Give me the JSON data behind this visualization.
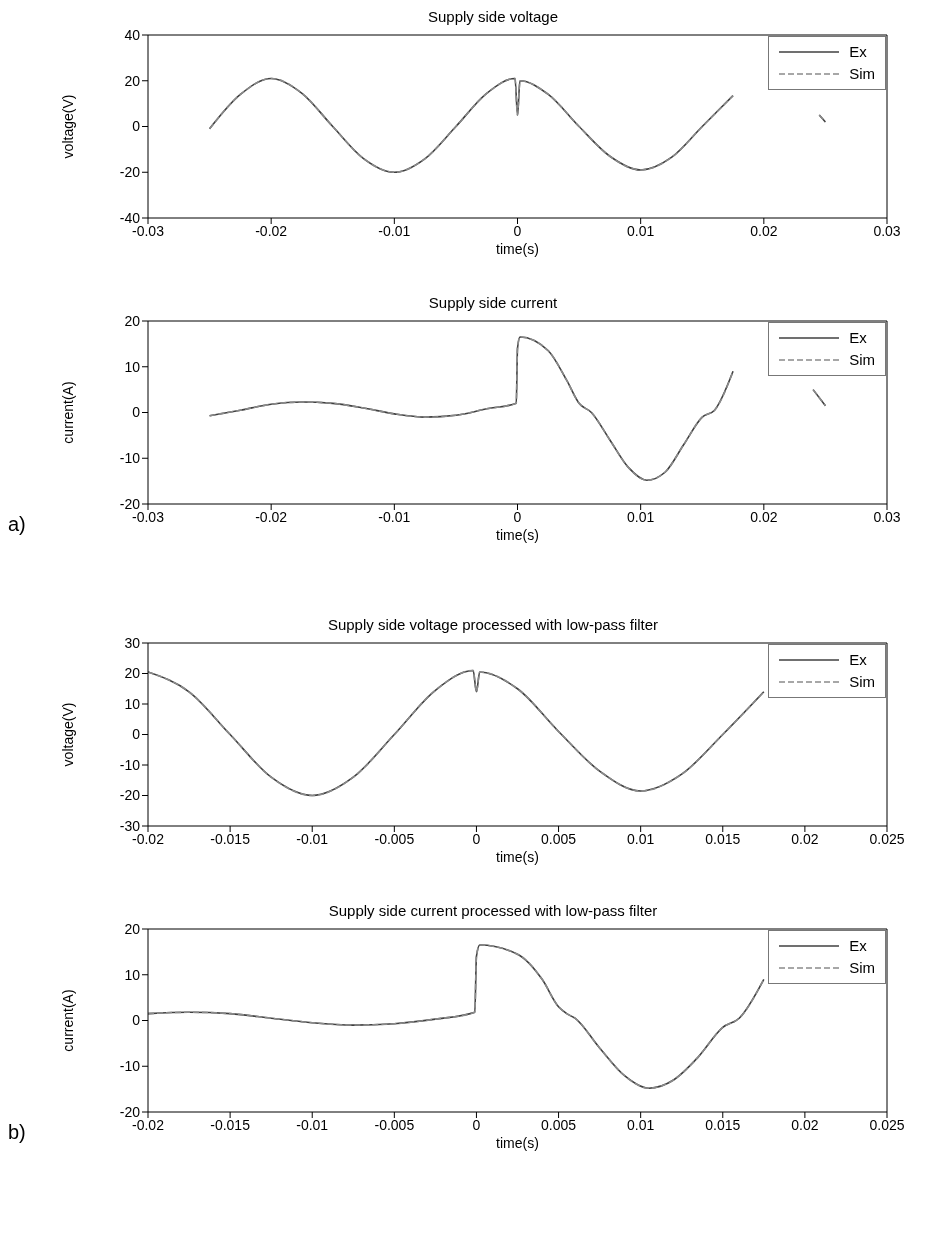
{
  "chart_data": [
    {
      "type": "line",
      "title": "Supply side voltage",
      "xlabel": "time(s)",
      "ylabel": "voltage(V)",
      "xlim": [
        -0.03,
        0.03
      ],
      "xticks": [
        -0.03,
        -0.02,
        -0.01,
        0,
        0.01,
        0.02,
        0.03
      ],
      "ylim": [
        -40,
        40
      ],
      "yticks": [
        -40,
        -20,
        0,
        20,
        40
      ],
      "legend": "top right",
      "grid": false,
      "x": [
        -0.025,
        -0.0225,
        -0.02,
        -0.0175,
        -0.015,
        -0.0125,
        -0.01,
        -0.0075,
        -0.005,
        -0.0025,
        -0.0002,
        0,
        0.0002,
        0.0025,
        0.005,
        0.0075,
        0.01,
        0.0125,
        0.015,
        0.0175,
        0.02,
        0.0225,
        0.0245,
        0.025
      ],
      "series": [
        {
          "name": "Ex",
          "color": "#404040",
          "line_style": "solid",
          "values": [
            -1,
            14,
            21,
            14.5,
            0,
            -14,
            -20,
            -14,
            0,
            14.5,
            21,
            5,
            20,
            14,
            0,
            -13,
            -19,
            -13.5,
            0,
            13.5,
            null,
            null,
            5,
            2
          ]
        },
        {
          "name": "Sim",
          "color": "#8a8a8a",
          "line_style": "dashed",
          "values": [
            -1,
            14,
            21,
            14.5,
            0,
            -14,
            -20,
            -14,
            0,
            14.5,
            21,
            5,
            20,
            14,
            0,
            -13,
            -19,
            -13.5,
            0,
            13.5,
            null,
            null,
            5,
            2
          ]
        }
      ]
    },
    {
      "type": "line",
      "title": "Supply side current",
      "xlabel": "time(s)",
      "ylabel": "current(A)",
      "annotations": [
        "a)"
      ],
      "xlim": [
        -0.03,
        0.03
      ],
      "xticks": [
        -0.03,
        -0.02,
        -0.01,
        0,
        0.01,
        0.02,
        0.03
      ],
      "ylim": [
        -20,
        20
      ],
      "yticks": [
        -20,
        -10,
        0,
        10,
        20
      ],
      "legend": "top right",
      "grid": false,
      "x": [
        -0.025,
        -0.0225,
        -0.02,
        -0.0175,
        -0.015,
        -0.0125,
        -0.01,
        -0.0075,
        -0.005,
        -0.0025,
        -0.0001,
        0,
        0.0002,
        0.0025,
        0.004,
        0.005,
        0.006,
        0.0075,
        0.009,
        0.0105,
        0.012,
        0.0135,
        0.015,
        0.016,
        0.0175,
        0.02,
        0.0225,
        0.024,
        0.025
      ],
      "series": [
        {
          "name": "Ex",
          "color": "#404040",
          "line_style": "solid",
          "values": [
            -0.7,
            0.5,
            1.8,
            2.3,
            2,
            1,
            -0.3,
            -1,
            -0.6,
            0.8,
            2,
            14,
            16.5,
            13.5,
            7,
            2,
            0,
            -6,
            -12,
            -14.8,
            -13,
            -7,
            -1,
            0.5,
            9,
            null,
            null,
            5,
            1.5
          ]
        },
        {
          "name": "Sim",
          "color": "#8a8a8a",
          "line_style": "dashed",
          "values": [
            -0.7,
            0.5,
            1.8,
            2.3,
            2,
            1,
            -0.3,
            -1,
            -0.6,
            0.8,
            2,
            14,
            16.5,
            13.5,
            7,
            2,
            0,
            -6,
            -12,
            -14.8,
            -13,
            -7,
            -1,
            0.5,
            9,
            null,
            null,
            5,
            1.5
          ]
        }
      ]
    },
    {
      "type": "line",
      "title": "Supply side voltage processed with low-pass filter",
      "xlabel": "time(s)",
      "ylabel": "voltage(V)",
      "xlim": [
        -0.02,
        0.025
      ],
      "xticks": [
        -0.02,
        -0.015,
        -0.01,
        -0.005,
        0,
        0.005,
        0.01,
        0.015,
        0.02,
        0.025
      ],
      "ylim": [
        -30,
        30
      ],
      "yticks": [
        -30,
        -20,
        -10,
        0,
        10,
        20,
        30
      ],
      "legend": "top right",
      "grid": false,
      "x": [
        -0.02,
        -0.0175,
        -0.015,
        -0.0125,
        -0.01,
        -0.0075,
        -0.005,
        -0.0025,
        -0.0002,
        0,
        0.0002,
        0.0025,
        0.005,
        0.0075,
        0.01,
        0.0125,
        0.015,
        0.0175
      ],
      "series": [
        {
          "name": "Ex",
          "color": "#404040",
          "line_style": "solid",
          "values": [
            20.5,
            14,
            0,
            -14,
            -20,
            -14,
            0,
            14.5,
            21,
            14,
            20.5,
            15,
            1,
            -12,
            -18.5,
            -13,
            0,
            14
          ]
        },
        {
          "name": "Sim",
          "color": "#8a8a8a",
          "line_style": "dashed",
          "values": [
            20.5,
            14,
            0,
            -14,
            -20,
            -14,
            0,
            14.5,
            21,
            14,
            20.5,
            15,
            1,
            -12,
            -18.5,
            -13,
            0,
            14
          ]
        }
      ]
    },
    {
      "type": "line",
      "title": "Supply side current processed with low-pass filter",
      "xlabel": "time(s)",
      "ylabel": "current(A)",
      "annotations": [
        "b)"
      ],
      "xlim": [
        -0.02,
        0.025
      ],
      "xticks": [
        -0.02,
        -0.015,
        -0.01,
        -0.005,
        0,
        0.005,
        0.01,
        0.015,
        0.02,
        0.025
      ],
      "ylim": [
        -20,
        20
      ],
      "yticks": [
        -20,
        -10,
        0,
        10,
        20
      ],
      "legend": "top right",
      "grid": false,
      "x": [
        -0.02,
        -0.0175,
        -0.015,
        -0.0125,
        -0.01,
        -0.0075,
        -0.005,
        -0.0025,
        -0.0001,
        0,
        0.0002,
        0.0025,
        0.004,
        0.005,
        0.0055,
        0.006,
        0.0075,
        0.009,
        0.0105,
        0.012,
        0.0135,
        0.015,
        0.016,
        0.0175
      ],
      "series": [
        {
          "name": "Ex",
          "color": "#404040",
          "line_style": "solid",
          "values": [
            1.5,
            1.8,
            1.5,
            0.5,
            -0.5,
            -1,
            -0.7,
            0.3,
            1.8,
            14,
            16.5,
            14.5,
            9,
            3,
            1.5,
            0.5,
            -6,
            -12,
            -14.8,
            -13,
            -8,
            -1.5,
            0.5,
            9
          ]
        },
        {
          "name": "Sim",
          "color": "#8a8a8a",
          "line_style": "dashed",
          "values": [
            1.5,
            1.8,
            1.5,
            0.5,
            -0.5,
            -1,
            -0.7,
            0.3,
            1.8,
            14,
            16.5,
            14.5,
            9,
            3,
            1.5,
            0.5,
            -6,
            -12,
            -14.8,
            -13,
            -8,
            -1.5,
            0.5,
            9
          ]
        }
      ]
    }
  ]
}
